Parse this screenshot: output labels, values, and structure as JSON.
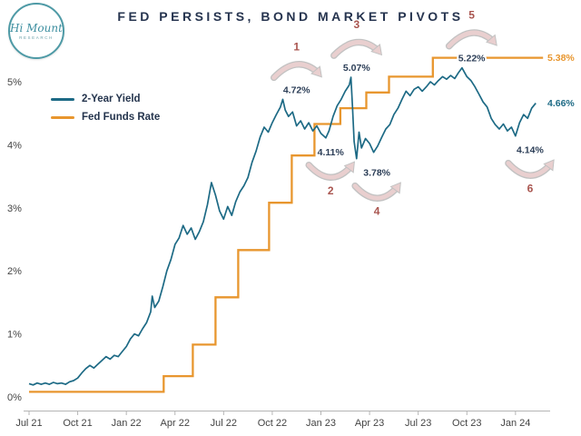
{
  "logo": {
    "line1": "Hi Mount",
    "line2": "RESEARCH"
  },
  "chart_data": {
    "type": "line",
    "title": "FED PERSISTS, BOND MARKET PIVOTS",
    "x_tick_labels": [
      "Jul 21",
      "Oct 21",
      "Jan 22",
      "Apr 22",
      "Jul 22",
      "Oct 22",
      "Jan 23",
      "Apr 23",
      "Jul 23",
      "Oct 23",
      "Jan 24"
    ],
    "x_tick_months": [
      0,
      3,
      6,
      9,
      12,
      15,
      18,
      21,
      24,
      27,
      30
    ],
    "y_tick_labels": [
      "0%",
      "1%",
      "2%",
      "3%",
      "4%",
      "5%"
    ],
    "y_ticks": [
      0,
      1,
      2,
      3,
      4,
      5
    ],
    "x_range_months": [
      0,
      31.8
    ],
    "ylim": [
      0,
      5.6
    ],
    "grid": false,
    "legend_position": "upper-left-inside",
    "series": [
      {
        "name": "2-Year Yield",
        "color": "#1d6a85",
        "kind": "line",
        "points": [
          [
            0,
            0.21
          ],
          [
            0.25,
            0.19
          ],
          [
            0.5,
            0.22
          ],
          [
            0.75,
            0.2
          ],
          [
            1,
            0.22
          ],
          [
            1.25,
            0.2
          ],
          [
            1.5,
            0.23
          ],
          [
            1.75,
            0.21
          ],
          [
            2,
            0.22
          ],
          [
            2.25,
            0.2
          ],
          [
            2.5,
            0.24
          ],
          [
            2.75,
            0.26
          ],
          [
            3,
            0.3
          ],
          [
            3.25,
            0.38
          ],
          [
            3.5,
            0.45
          ],
          [
            3.75,
            0.5
          ],
          [
            4,
            0.46
          ],
          [
            4.25,
            0.52
          ],
          [
            4.5,
            0.58
          ],
          [
            4.75,
            0.64
          ],
          [
            5,
            0.6
          ],
          [
            5.25,
            0.66
          ],
          [
            5.5,
            0.64
          ],
          [
            5.75,
            0.72
          ],
          [
            6,
            0.8
          ],
          [
            6.25,
            0.92
          ],
          [
            6.5,
            1.0
          ],
          [
            6.75,
            0.97
          ],
          [
            7,
            1.08
          ],
          [
            7.25,
            1.18
          ],
          [
            7.5,
            1.35
          ],
          [
            7.6,
            1.6
          ],
          [
            7.75,
            1.42
          ],
          [
            8,
            1.52
          ],
          [
            8.25,
            1.75
          ],
          [
            8.5,
            2.0
          ],
          [
            8.75,
            2.18
          ],
          [
            9,
            2.42
          ],
          [
            9.25,
            2.52
          ],
          [
            9.5,
            2.72
          ],
          [
            9.75,
            2.58
          ],
          [
            10,
            2.68
          ],
          [
            10.25,
            2.5
          ],
          [
            10.5,
            2.62
          ],
          [
            10.75,
            2.78
          ],
          [
            11,
            3.05
          ],
          [
            11.25,
            3.4
          ],
          [
            11.5,
            3.2
          ],
          [
            11.75,
            2.95
          ],
          [
            12,
            2.82
          ],
          [
            12.25,
            3.02
          ],
          [
            12.5,
            2.88
          ],
          [
            12.75,
            3.1
          ],
          [
            13,
            3.25
          ],
          [
            13.25,
            3.35
          ],
          [
            13.5,
            3.48
          ],
          [
            13.75,
            3.72
          ],
          [
            14,
            3.9
          ],
          [
            14.25,
            4.12
          ],
          [
            14.5,
            4.28
          ],
          [
            14.75,
            4.2
          ],
          [
            15,
            4.35
          ],
          [
            15.25,
            4.48
          ],
          [
            15.5,
            4.6
          ],
          [
            15.65,
            4.72
          ],
          [
            15.8,
            4.55
          ],
          [
            16,
            4.45
          ],
          [
            16.25,
            4.52
          ],
          [
            16.5,
            4.3
          ],
          [
            16.75,
            4.38
          ],
          [
            17,
            4.25
          ],
          [
            17.25,
            4.35
          ],
          [
            17.5,
            4.22
          ],
          [
            17.75,
            4.3
          ],
          [
            18,
            4.18
          ],
          [
            18.3,
            4.11
          ],
          [
            18.5,
            4.22
          ],
          [
            18.75,
            4.45
          ],
          [
            19,
            4.62
          ],
          [
            19.25,
            4.72
          ],
          [
            19.5,
            4.85
          ],
          [
            19.75,
            4.95
          ],
          [
            19.85,
            5.07
          ],
          [
            19.95,
            4.6
          ],
          [
            20.05,
            4.05
          ],
          [
            20.2,
            3.78
          ],
          [
            20.35,
            4.2
          ],
          [
            20.5,
            3.95
          ],
          [
            20.75,
            4.1
          ],
          [
            21,
            4.02
          ],
          [
            21.25,
            3.88
          ],
          [
            21.5,
            3.98
          ],
          [
            21.75,
            4.12
          ],
          [
            22,
            4.25
          ],
          [
            22.25,
            4.32
          ],
          [
            22.5,
            4.48
          ],
          [
            22.75,
            4.58
          ],
          [
            23,
            4.72
          ],
          [
            23.25,
            4.85
          ],
          [
            23.5,
            4.78
          ],
          [
            23.75,
            4.88
          ],
          [
            24,
            4.92
          ],
          [
            24.25,
            4.85
          ],
          [
            24.5,
            4.92
          ],
          [
            24.75,
            5.0
          ],
          [
            25,
            4.95
          ],
          [
            25.25,
            5.02
          ],
          [
            25.5,
            5.08
          ],
          [
            25.75,
            5.04
          ],
          [
            26,
            5.1
          ],
          [
            26.25,
            5.05
          ],
          [
            26.5,
            5.15
          ],
          [
            26.7,
            5.22
          ],
          [
            27,
            5.08
          ],
          [
            27.25,
            5.02
          ],
          [
            27.5,
            4.92
          ],
          [
            27.75,
            4.8
          ],
          [
            28,
            4.68
          ],
          [
            28.25,
            4.6
          ],
          [
            28.5,
            4.42
          ],
          [
            28.75,
            4.32
          ],
          [
            29,
            4.25
          ],
          [
            29.25,
            4.33
          ],
          [
            29.5,
            4.22
          ],
          [
            29.75,
            4.28
          ],
          [
            30,
            4.14
          ],
          [
            30.25,
            4.35
          ],
          [
            30.5,
            4.48
          ],
          [
            30.75,
            4.42
          ],
          [
            31,
            4.58
          ],
          [
            31.25,
            4.66
          ]
        ]
      },
      {
        "name": "Fed Funds Rate",
        "color": "#e8962e",
        "kind": "step",
        "extend_to": 31.7,
        "points": [
          [
            0,
            0.08
          ],
          [
            8.3,
            0.33
          ],
          [
            10.1,
            0.83
          ],
          [
            11.5,
            1.58
          ],
          [
            12.9,
            2.33
          ],
          [
            14.8,
            3.08
          ],
          [
            16.2,
            3.83
          ],
          [
            17.6,
            4.33
          ],
          [
            19.2,
            4.58
          ],
          [
            20.8,
            4.83
          ],
          [
            22.2,
            5.08
          ],
          [
            24.9,
            5.38
          ]
        ]
      }
    ],
    "annotations": [
      {
        "num": "1",
        "value": "4.72%",
        "m": 16.5,
        "kind": "peak"
      },
      {
        "num": "2",
        "value": "4.11%",
        "m": 18.6,
        "kind": "trough"
      },
      {
        "num": "3",
        "value": "5.07%",
        "m": 20.2,
        "kind": "peak"
      },
      {
        "num": "4",
        "value": "3.78%",
        "m": 21.45,
        "kind": "trough"
      },
      {
        "num": "5",
        "value": "5.22%",
        "m": 27.3,
        "kind": "peak"
      },
      {
        "num": "6",
        "value": "4.14%",
        "m": 30.9,
        "kind": "trough"
      }
    ],
    "end_labels": [
      {
        "text": "5.38%",
        "value": 5.38,
        "color": "#e8962e"
      },
      {
        "text": "4.66%",
        "value": 4.66,
        "color": "#1d6a85"
      }
    ],
    "annotation_number_color": "#a9554f",
    "annotation_label_color": "#2c3e57",
    "arrow_fill": "#e9cfcf",
    "arrow_outline": "#c2c2c2",
    "axis_color": "#b5b5b5",
    "tick_label_color": "#444444"
  }
}
